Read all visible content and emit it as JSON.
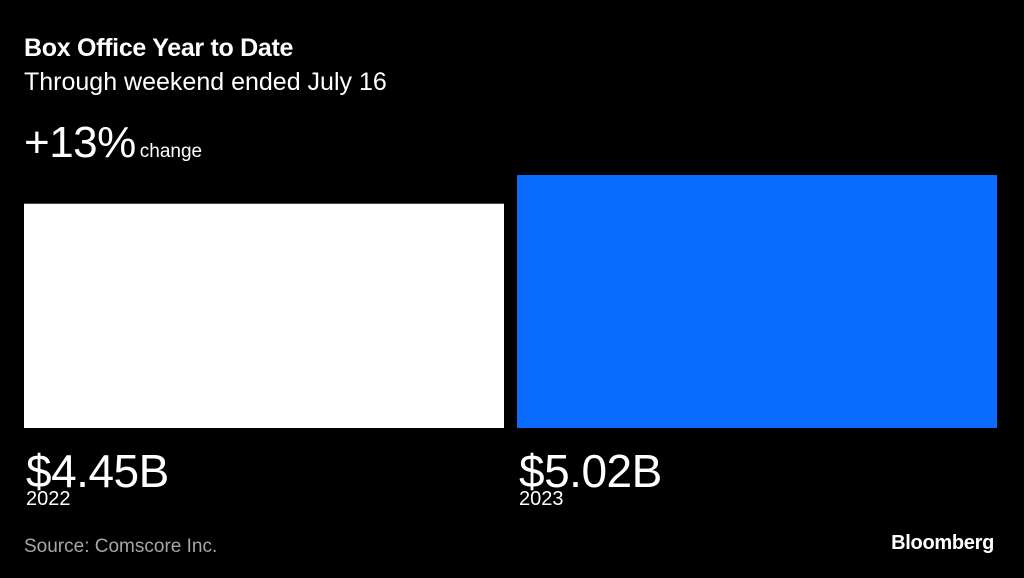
{
  "header": {
    "title": "Box Office Year to Date",
    "subtitle": "Through weekend ended July 16"
  },
  "summary": {
    "change_value": "+13%",
    "change_label": "change"
  },
  "chart_data": {
    "type": "bar",
    "title": "Box Office Year to Date",
    "subtitle": "Through weekend ended July 16",
    "categories": [
      "2022",
      "2023"
    ],
    "values": [
      4.45,
      5.02
    ],
    "value_labels": [
      "$4.45B",
      "$5.02B"
    ],
    "unit": "billion USD",
    "colors": [
      "#ffffff",
      "#0a6cff"
    ],
    "grid": false
  },
  "footer": {
    "source": "Source: Comscore Inc.",
    "brand": "Bloomberg"
  }
}
